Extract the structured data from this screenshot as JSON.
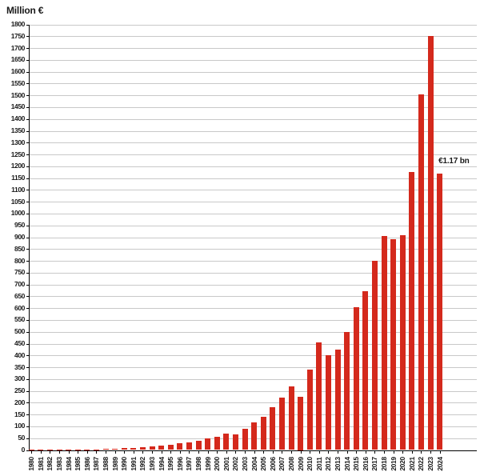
{
  "chart_data": {
    "type": "bar",
    "title": "Million €",
    "ylabel": "Million €",
    "xlabel": "",
    "ylim": [
      0,
      1800
    ],
    "ytick_step": 50,
    "grid": true,
    "legend": false,
    "bar_color": "#d4291c",
    "categories": [
      "1980",
      "1981",
      "1982",
      "1983",
      "1984",
      "1985",
      "1986",
      "1987",
      "1988",
      "1989",
      "1990",
      "1991",
      "1992",
      "1993",
      "1994",
      "1995",
      "1996",
      "1997",
      "1998",
      "1999",
      "2000",
      "2001",
      "2002",
      "2003",
      "2004",
      "2005",
      "2006",
      "2007",
      "2008",
      "2009",
      "2010",
      "2011",
      "2012",
      "2013",
      "2014",
      "2015",
      "2016",
      "2017",
      "2018",
      "2019",
      "2020",
      "2021",
      "2022",
      "2023",
      "2024"
    ],
    "values": [
      0.5,
      0.7,
      1,
      1,
      1.5,
      2,
      2.5,
      3,
      4,
      5,
      7,
      10,
      12,
      14,
      18,
      22,
      28,
      32,
      40,
      48,
      57,
      70,
      65,
      88,
      118,
      140,
      180,
      220,
      270,
      225,
      340,
      455,
      400,
      425,
      500,
      605,
      670,
      800,
      905,
      890,
      910,
      1175,
      1505,
      1750,
      1170
    ],
    "annotations": [
      {
        "text": "€1.17 bn",
        "target_category": "2024",
        "y_value": 1240
      }
    ]
  }
}
